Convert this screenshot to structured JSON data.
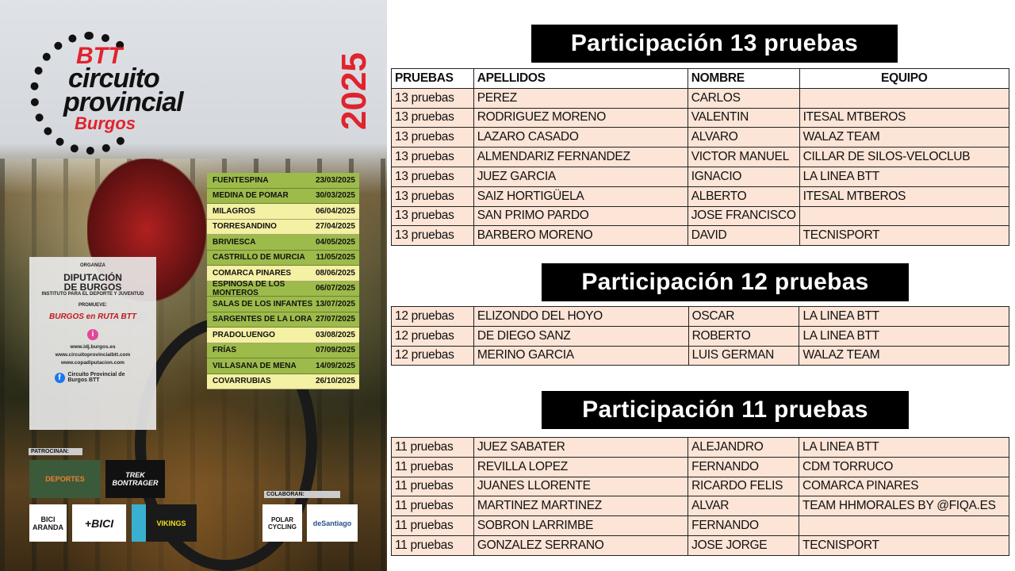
{
  "poster": {
    "logo": {
      "line1": "BTT",
      "line2": "circuito",
      "line3": "provincial",
      "line4": "Burgos"
    },
    "year": "2025",
    "schedule": [
      {
        "place": "FUENTESPINA",
        "date": "23/03/2025",
        "color": "#9dbb4a"
      },
      {
        "place": "MEDINA DE POMAR",
        "date": "30/03/2025",
        "color": "#9dbb4a"
      },
      {
        "place": "MILAGROS",
        "date": "06/04/2025",
        "color": "#f4f0a4"
      },
      {
        "place": "TORRESANDINO",
        "date": "27/04/2025",
        "color": "#f4f0a4"
      },
      {
        "place": "BRIVIESCA",
        "date": "04/05/2025",
        "color": "#9dbb4a"
      },
      {
        "place": "CASTRILLO DE MURCIA",
        "date": "11/05/2025",
        "color": "#9dbb4a"
      },
      {
        "place": "COMARCA PINARES",
        "date": "08/06/2025",
        "color": "#f4f0a4"
      },
      {
        "place": "ESPINOSA DE LOS MONTEROS",
        "date": "06/07/2025",
        "color": "#9dbb4a"
      },
      {
        "place": "SALAS DE LOS INFANTES",
        "date": "13/07/2025",
        "color": "#9dbb4a"
      },
      {
        "place": "SARGENTES DE LA LORA",
        "date": "27/07/2025",
        "color": "#9dbb4a"
      },
      {
        "place": "PRADOLUENGO",
        "date": "03/08/2025",
        "color": "#f4f0a4"
      },
      {
        "place": "FRÍAS",
        "date": "07/09/2025",
        "color": "#9dbb4a"
      },
      {
        "place": "VILLASANA DE MENA",
        "date": "14/09/2025",
        "color": "#9dbb4a"
      },
      {
        "place": "COVARRUBIAS",
        "date": "26/10/2025",
        "color": "#f4f0a4"
      }
    ],
    "organiza": {
      "label": "ORGANIZA",
      "name1": "DIPUTACIÓN",
      "name2": "DE BURGOS",
      "institute": "INSTITUTO PARA EL DEPORTE Y JUVENTUD",
      "promueve": "PROMUEVE:",
      "promoter": "BURGOS en RUTA BTT",
      "info": "i",
      "webs": [
        "www.idj.burgos.es",
        "www.circuitoprovincialbtt.com",
        "www.copadiputacion.com"
      ],
      "facebook": "Circuito Provincial de Burgos BTT"
    },
    "patrocinan": "PATROCINAN:",
    "colaboran": "COLABORAN:",
    "sponsors": [
      "DEPORTES",
      "TREK BONTRAGER",
      "BICI ARANDA",
      "+BICI",
      "VIKINGS"
    ],
    "collaborators": [
      "POLAR CYCLING",
      "deSantiago"
    ]
  },
  "headers": [
    "PRUEBAS",
    "APELLIDOS",
    "NOMBRE",
    "EQUIPO"
  ],
  "sections": [
    {
      "title": "Participación 13 pruebas",
      "rows": [
        [
          "13 pruebas",
          "PEREZ",
          "CARLOS",
          ""
        ],
        [
          "13 pruebas",
          "RODRIGUEZ MORENO",
          "VALENTIN",
          "ITESAL MTBEROS"
        ],
        [
          "13 pruebas",
          "LAZARO CASADO",
          "ALVARO",
          "WALAZ TEAM"
        ],
        [
          "13 pruebas",
          "ALMENDARIZ FERNANDEZ",
          "VICTOR MANUEL",
          "CILLAR DE SILOS-VELOCLUB"
        ],
        [
          "13 pruebas",
          "JUEZ GARCIA",
          "IGNACIO",
          "LA LINEA BTT"
        ],
        [
          "13 pruebas",
          "SAIZ HORTIGÜELA",
          "ALBERTO",
          "ITESAL MTBEROS"
        ],
        [
          "13 pruebas",
          "SAN PRIMO PARDO",
          "JOSE FRANCISCO",
          ""
        ],
        [
          "13 pruebas",
          "BARBERO MORENO",
          "DAVID",
          "TECNISPORT"
        ]
      ]
    },
    {
      "title": "Participación 12 pruebas",
      "rows": [
        [
          "12 pruebas",
          "ELIZONDO DEL HOYO",
          "OSCAR",
          "LA LINEA BTT"
        ],
        [
          "12 pruebas",
          "DE DIEGO SANZ",
          "ROBERTO",
          "LA LINEA BTT"
        ],
        [
          "12 pruebas",
          "MERINO GARCIA",
          "LUIS GERMAN",
          "WALAZ TEAM"
        ]
      ]
    },
    {
      "title": "Participación 11 pruebas",
      "rows": [
        [
          "11 pruebas",
          "JUEZ SABATER",
          "ALEJANDRO",
          "LA LINEA BTT"
        ],
        [
          "11 pruebas",
          "REVILLA LOPEZ",
          "FERNANDO",
          "CDM TORRUCO"
        ],
        [
          "11 pruebas",
          "JUANES LLORENTE",
          "RICARDO FELIS",
          "COMARCA PINARES"
        ],
        [
          "11 pruebas",
          "MARTINEZ MARTINEZ",
          "ALVAR",
          "TEAM HHMORALES BY @FIQA.ES"
        ],
        [
          "11 pruebas",
          "SOBRON LARRIMBE",
          "FERNANDO",
          ""
        ],
        [
          "11 pruebas",
          "GONZALEZ SERRANO",
          "JOSE JORGE",
          "TECNISPORT"
        ]
      ]
    }
  ]
}
